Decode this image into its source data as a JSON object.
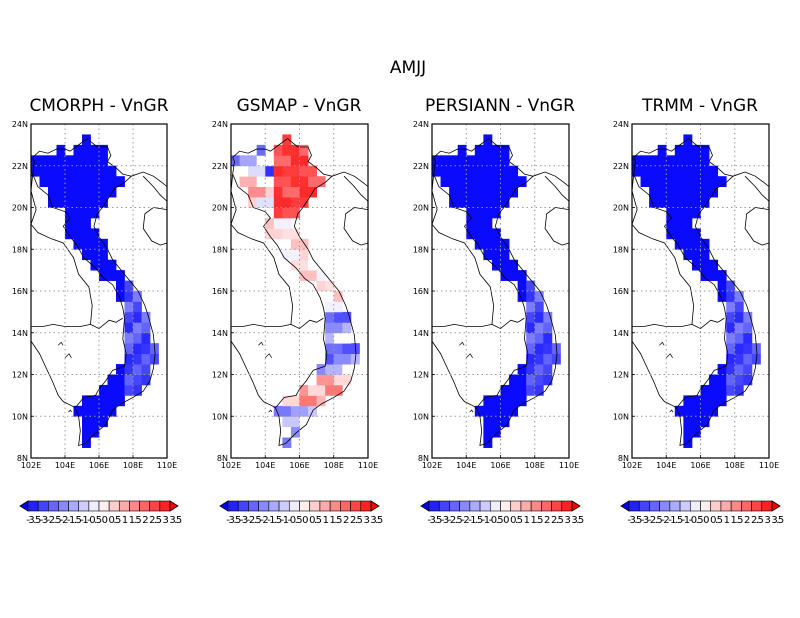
{
  "figure": {
    "title": "AMJJ"
  },
  "panels": [
    {
      "title": "CMORPH - VnGR",
      "scheme": "blue"
    },
    {
      "title": "GSMAP - VnGR",
      "scheme": "mixed"
    },
    {
      "title": "PERSIANN - VnGR",
      "scheme": "blue"
    },
    {
      "title": "TRMM - VnGR",
      "scheme": "blue"
    }
  ],
  "axes": {
    "lon_range": [
      102,
      110
    ],
    "lat_range": [
      8,
      24
    ],
    "x_ticks": [
      "102E",
      "104E",
      "106E",
      "108E",
      "110E"
    ],
    "y_ticks": [
      "8N",
      "10N",
      "12N",
      "14N",
      "16N",
      "18N",
      "20N",
      "22N",
      "24N"
    ],
    "grid": "dotted"
  },
  "colorbar": {
    "levels": [
      -3.5,
      -3,
      -2.5,
      -2,
      -1.5,
      -1,
      -0.5,
      0,
      0.5,
      1,
      1.5,
      2,
      2.5,
      3,
      3.5
    ],
    "labels": [
      "-3.5",
      "-3",
      "-2.5",
      "-2",
      "-1.5",
      "-1",
      "-0.5",
      "0",
      "0.5",
      "1",
      "1.5",
      "2",
      "2.5",
      "3",
      "3.5"
    ],
    "colors": [
      "#0000ff",
      "#2222ff",
      "#4444ff",
      "#6666ff",
      "#8888ff",
      "#aaaaff",
      "#ccccff",
      "#eeeeff",
      "#ffeeee",
      "#ffcccc",
      "#ffaaaa",
      "#ff8888",
      "#ff6666",
      "#ff4444",
      "#ff2222",
      "#ff0000"
    ],
    "extend": "both"
  }
}
